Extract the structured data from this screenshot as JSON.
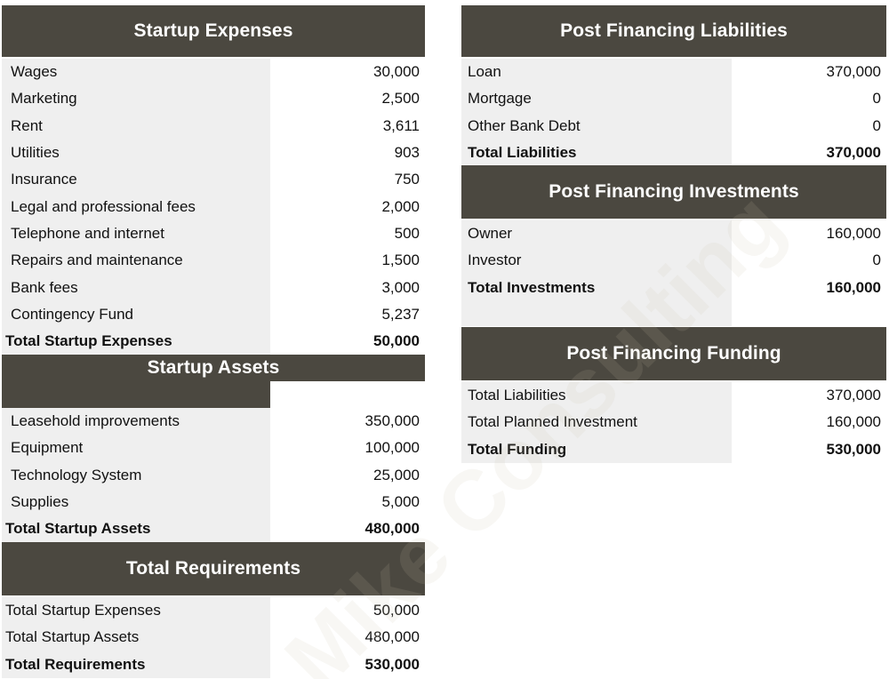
{
  "watermark": {
    "text": "Mike Consulting"
  },
  "startup_expenses": {
    "title": "Startup Expenses",
    "rows": [
      {
        "label": "Wages",
        "value": "30,000"
      },
      {
        "label": "Marketing",
        "value": "2,500"
      },
      {
        "label": "Rent",
        "value": "3,611"
      },
      {
        "label": "Utilities",
        "value": "903"
      },
      {
        "label": "Insurance",
        "value": "750"
      },
      {
        "label": "Legal and professional fees",
        "value": "2,000"
      },
      {
        "label": "Telephone and internet",
        "value": "500"
      },
      {
        "label": "Repairs and maintenance",
        "value": "1,500"
      },
      {
        "label": "Bank fees",
        "value": "3,000"
      },
      {
        "label": "Contingency Fund",
        "value": "5,237"
      }
    ],
    "total": {
      "label": "Total Startup Expenses",
      "value": "50,000"
    }
  },
  "startup_assets": {
    "title": "Startup Assets",
    "rows": [
      {
        "label": "Leasehold improvements",
        "value": "350,000"
      },
      {
        "label": "Equipment",
        "value": "100,000"
      },
      {
        "label": "Technology System",
        "value": "25,000"
      },
      {
        "label": "Supplies",
        "value": "5,000"
      }
    ],
    "total": {
      "label": "Total Startup Assets",
      "value": "480,000"
    }
  },
  "total_requirements": {
    "title": "Total Requirements",
    "rows": [
      {
        "label": "Total Startup Expenses",
        "value": "50,000"
      },
      {
        "label": "Total Startup Assets",
        "value": "480,000"
      }
    ],
    "total": {
      "label": "Total Requirements",
      "value": "530,000"
    }
  },
  "liabilities": {
    "title": "Post Financing Liabilities",
    "rows": [
      {
        "label": "Loan",
        "value": "370,000"
      },
      {
        "label": "Mortgage",
        "value": "0"
      },
      {
        "label": "Other Bank Debt",
        "value": "0"
      }
    ],
    "total": {
      "label": "Total Liabilities",
      "value": "370,000"
    }
  },
  "investments": {
    "title": "Post Financing Investments",
    "rows": [
      {
        "label": "Owner",
        "value": "160,000"
      },
      {
        "label": "Investor",
        "value": "0"
      }
    ],
    "total": {
      "label": "Total Investments",
      "value": "160,000"
    }
  },
  "funding": {
    "title": "Post Financing Funding",
    "rows": [
      {
        "label": "Total Liabilities",
        "value": "370,000"
      },
      {
        "label": "Total Planned Investment",
        "value": "160,000"
      }
    ],
    "total": {
      "label": "Total Funding",
      "value": "530,000"
    }
  },
  "colors": {
    "header_bg": "#4b4840",
    "header_text": "#ffffff",
    "label_bg": "#efefef"
  }
}
